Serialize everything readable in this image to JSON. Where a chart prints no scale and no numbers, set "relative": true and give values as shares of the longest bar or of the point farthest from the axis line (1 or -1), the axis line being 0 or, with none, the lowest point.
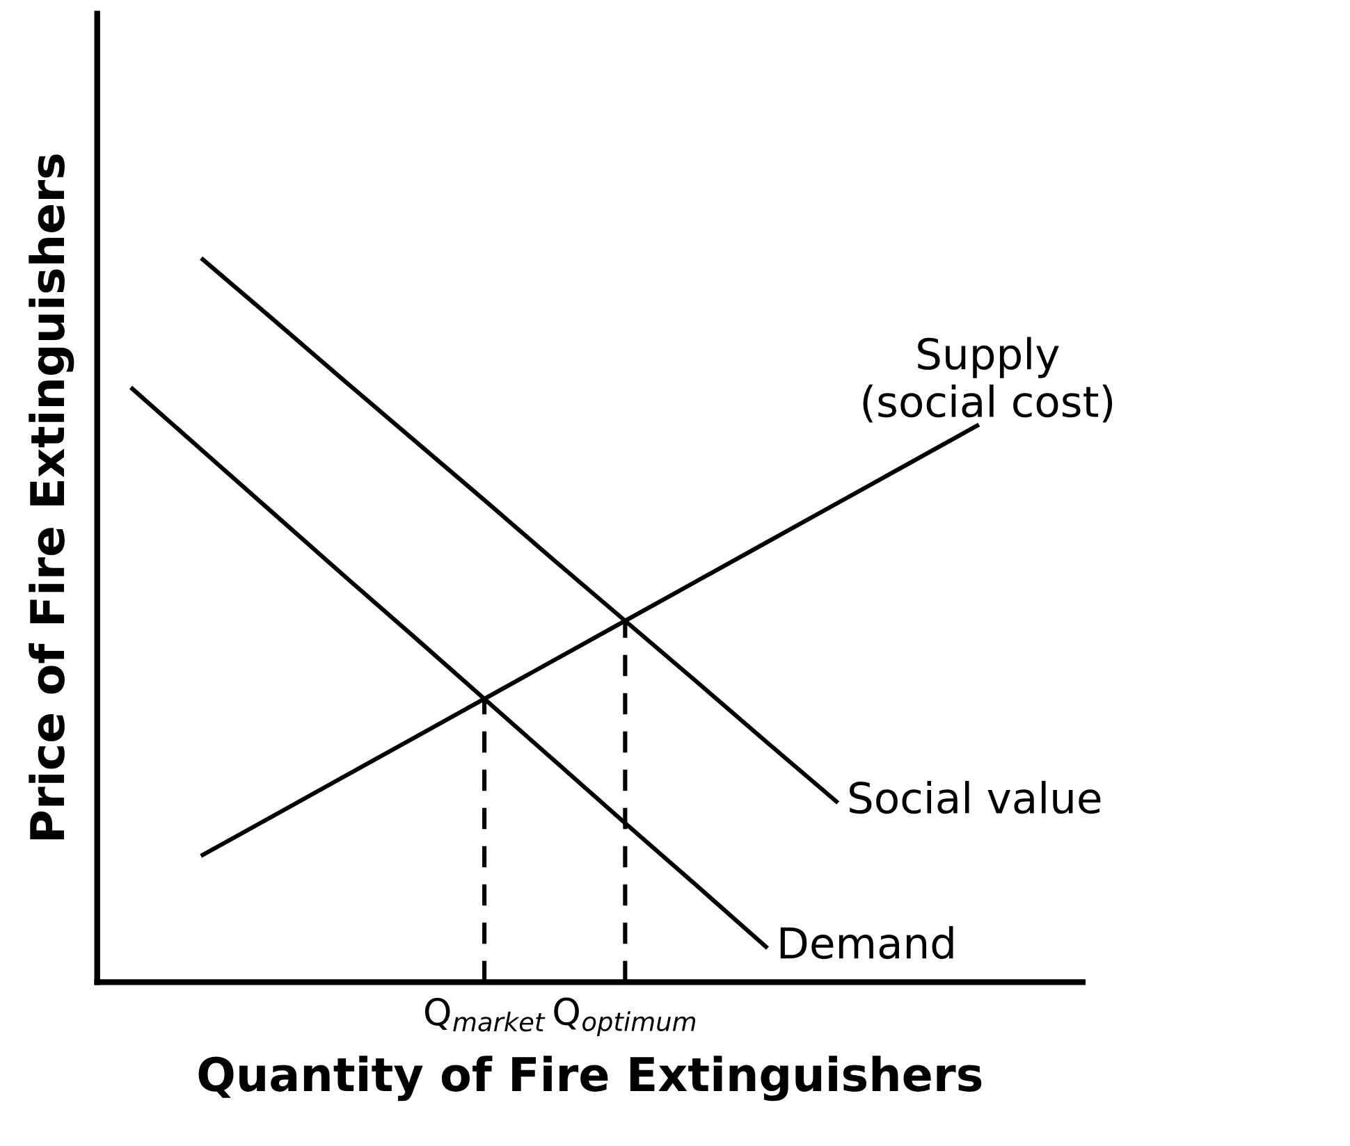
{
  "chart_data": {
    "type": "line",
    "relative": true,
    "xlabel": "Quantity of Fire Extinguishers",
    "ylabel": "Price of Fire Extinguishers",
    "categories": [
      null,
      null,
      null,
      null,
      null,
      "Q$_{market}$",
      null,
      "Q$_{optimum}$",
      null,
      null,
      null,
      null,
      null,
      null
    ],
    "tick_labels": "x",
    "legend": false,
    "grid": false,
    "marker": "none",
    "series": [
      {
        "name": "Supply\n(social cost)",
        "color": "#000000",
        "values": [
          null,
          0.176,
          0.23,
          0.284,
          0.338,
          0.392,
          0.446,
          0.5,
          0.554,
          0.608,
          0.662,
          0.716,
          0.77,
          null
        ]
      },
      {
        "name": "Social value",
        "color": "#000000",
        "values": [
          null,
          1.0,
          0.917,
          0.833,
          0.75,
          0.667,
          0.583,
          0.5,
          0.417,
          0.333,
          0.25,
          null,
          null,
          null
        ]
      },
      {
        "name": "Demand",
        "color": "#000000",
        "values": [
          0.821,
          0.735,
          0.649,
          0.563,
          0.478,
          0.392,
          0.306,
          0.22,
          0.135,
          0.049,
          null,
          null,
          null,
          null
        ]
      }
    ],
    "ref_lines": [
      {
        "axis": "x",
        "value": "Q$_{market}$",
        "line_style": "dashed",
        "color": "#000000"
      },
      {
        "axis": "x",
        "value": "Q$_{optimum}$",
        "line_style": "dashed",
        "color": "#000000"
      }
    ]
  }
}
